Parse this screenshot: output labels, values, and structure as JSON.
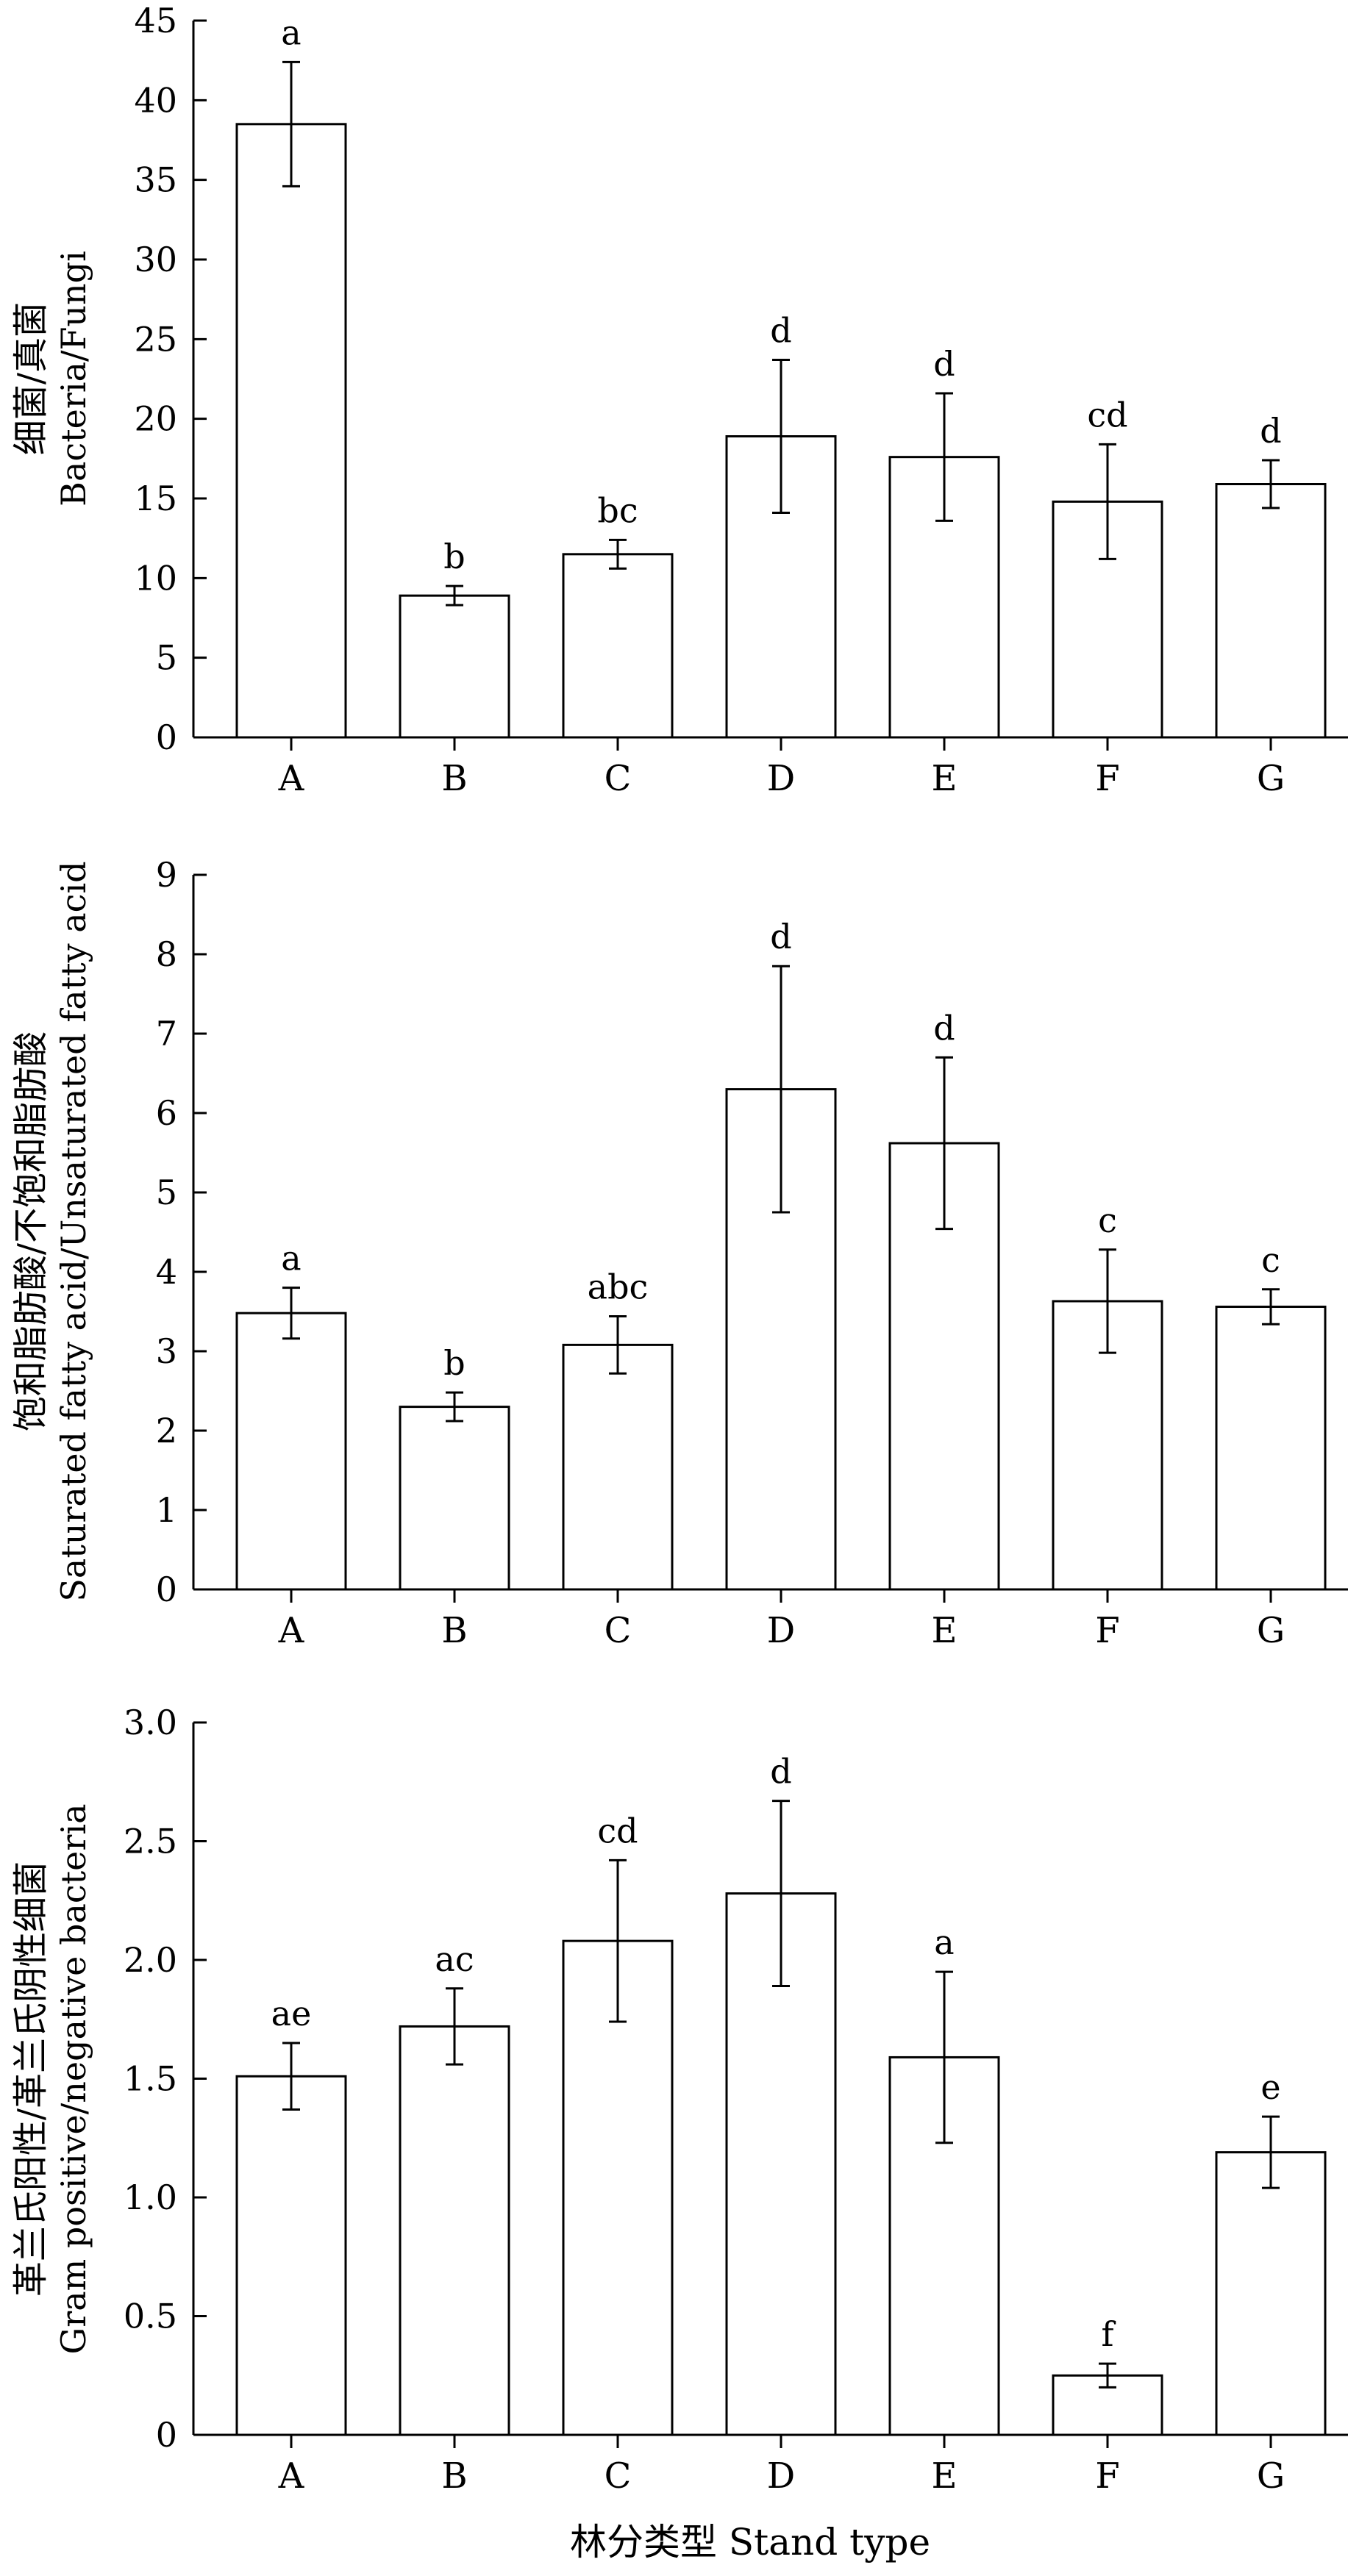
{
  "figure": {
    "xlabel": "林分类型 Stand type",
    "categories": [
      "A",
      "B",
      "C",
      "D",
      "E",
      "F",
      "G"
    ]
  },
  "chart_data": [
    {
      "type": "bar",
      "title": "",
      "ylabel_cn": "细菌/真菌",
      "ylabel_en": "Bacteria/Fungi",
      "categories": [
        "A",
        "B",
        "C",
        "D",
        "E",
        "F",
        "G"
      ],
      "values": [
        38.5,
        8.9,
        11.5,
        18.9,
        17.6,
        14.8,
        15.9
      ],
      "errors": [
        3.9,
        0.6,
        0.9,
        4.8,
        4.0,
        3.6,
        1.5
      ],
      "significance": [
        "a",
        "b",
        "bc",
        "d",
        "d",
        "cd",
        "d"
      ],
      "ylim": [
        0,
        45
      ],
      "yticks": [
        0,
        5,
        10,
        15,
        20,
        25,
        30,
        35,
        40,
        45
      ],
      "ytick_labels": [
        "0",
        "5",
        "10",
        "15",
        "20",
        "25",
        "30",
        "35",
        "40",
        "45"
      ]
    },
    {
      "type": "bar",
      "title": "",
      "ylabel_cn": "饱和脂肪酸/不饱和脂肪酸",
      "ylabel_en": "Saturated fatty acid/Unsaturated fatty acid",
      "categories": [
        "A",
        "B",
        "C",
        "D",
        "E",
        "F",
        "G"
      ],
      "values": [
        3.48,
        2.3,
        3.08,
        6.3,
        5.62,
        3.63,
        3.56
      ],
      "errors": [
        0.32,
        0.18,
        0.36,
        1.55,
        1.08,
        0.65,
        0.22
      ],
      "significance": [
        "a",
        "b",
        "abc",
        "d",
        "d",
        "c",
        "c"
      ],
      "ylim": [
        0,
        9
      ],
      "yticks": [
        0,
        1,
        2,
        3,
        4,
        5,
        6,
        7,
        8,
        9
      ],
      "ytick_labels": [
        "0",
        "1",
        "2",
        "3",
        "4",
        "5",
        "6",
        "7",
        "8",
        "9"
      ]
    },
    {
      "type": "bar",
      "title": "",
      "ylabel_cn": "革兰氏阳性/革兰氏阴性细菌",
      "ylabel_en": "Gram positive/negative bacteria",
      "categories": [
        "A",
        "B",
        "C",
        "D",
        "E",
        "F",
        "G"
      ],
      "values": [
        1.51,
        1.72,
        2.08,
        2.28,
        1.59,
        0.25,
        1.19
      ],
      "errors": [
        0.14,
        0.16,
        0.34,
        0.39,
        0.36,
        0.05,
        0.15
      ],
      "significance": [
        "ae",
        "ac",
        "cd",
        "d",
        "a",
        "f",
        "e"
      ],
      "ylim": [
        0,
        3.0
      ],
      "yticks": [
        0,
        0.5,
        1.0,
        1.5,
        2.0,
        2.5,
        3.0
      ],
      "ytick_labels": [
        "0",
        "0.5",
        "1.0",
        "1.5",
        "2.0",
        "2.5",
        "3.0"
      ]
    }
  ]
}
